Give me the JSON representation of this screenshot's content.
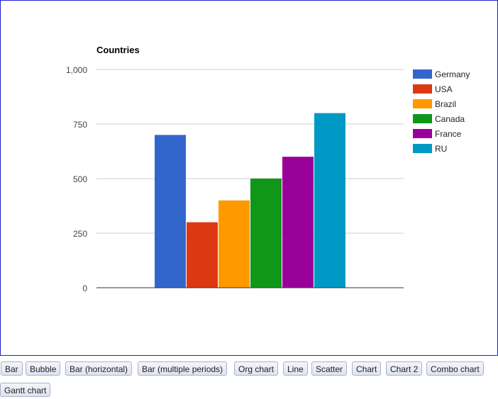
{
  "chart_data": {
    "type": "bar",
    "title": "Countries",
    "xlabel": "",
    "ylabel": "",
    "ylim": [
      0,
      1000
    ],
    "yticks": [
      0,
      250,
      500,
      750,
      1000
    ],
    "ytick_labels": [
      "0",
      "250",
      "500",
      "750",
      "1,000"
    ],
    "categories": [
      ""
    ],
    "grid": true,
    "legend": "right",
    "series": [
      {
        "name": "Germany",
        "values": [
          700
        ],
        "color": "#3366cc"
      },
      {
        "name": "USA",
        "values": [
          300
        ],
        "color": "#dc3912"
      },
      {
        "name": "Brazil",
        "values": [
          400
        ],
        "color": "#ff9900"
      },
      {
        "name": "Canada",
        "values": [
          500
        ],
        "color": "#109618"
      },
      {
        "name": "France",
        "values": [
          600
        ],
        "color": "#990099"
      },
      {
        "name": "RU",
        "values": [
          800
        ],
        "color": "#0099c6"
      }
    ]
  },
  "buttons": [
    {
      "label": "Bar"
    },
    {
      "label": "Bubble"
    },
    {
      "label": "Bar (horizontal)"
    },
    {
      "label": "Bar (multiple periods)"
    },
    {
      "label": "Org chart"
    },
    {
      "label": "Line"
    },
    {
      "label": "Scatter"
    },
    {
      "label": "Chart"
    },
    {
      "label": "Chart 2"
    },
    {
      "label": "Combo chart"
    },
    {
      "label": "Gantt chart"
    }
  ]
}
